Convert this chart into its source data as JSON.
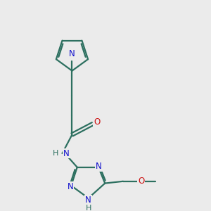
{
  "bg_color": "#ebebeb",
  "bond_color": "#2d7060",
  "n_color": "#1010cc",
  "o_color": "#cc1010",
  "h_color": "#2d7060",
  "line_width": 1.6,
  "figsize": [
    3.0,
    3.0
  ],
  "dpi": 100,
  "xlim": [
    0,
    10
  ],
  "ylim": [
    0,
    10
  ]
}
